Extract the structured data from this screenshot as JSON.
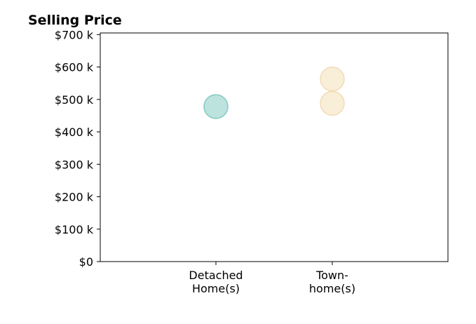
{
  "chart_data": {
    "type": "scatter",
    "title": "Selling Price",
    "xlabel": "",
    "ylabel": "",
    "categories": [
      "Detached Home(s)",
      "Town- home(s)"
    ],
    "category_label_lines": [
      [
        "Detached",
        "Home(s)"
      ],
      [
        "Town-",
        "home(s)"
      ]
    ],
    "y_tick_labels": [
      "$0",
      "$100 k",
      "$200 k",
      "$300 k",
      "$400 k",
      "$500 k",
      "$600 k",
      "$700 k"
    ],
    "y_ticks": [
      0,
      100000,
      200000,
      300000,
      400000,
      500000,
      600000,
      700000
    ],
    "ylim": [
      0,
      705000
    ],
    "grid": false,
    "legend": "none",
    "series": [
      {
        "category": "Detached Home(s)",
        "color": "#8fd0c8",
        "stroke": "#6fbfb6",
        "values": [
          478000
        ]
      },
      {
        "category": "Town- home(s)",
        "color": "#f5e2bd",
        "stroke": "#eed6a8",
        "values": [
          563000,
          488000
        ]
      }
    ]
  }
}
